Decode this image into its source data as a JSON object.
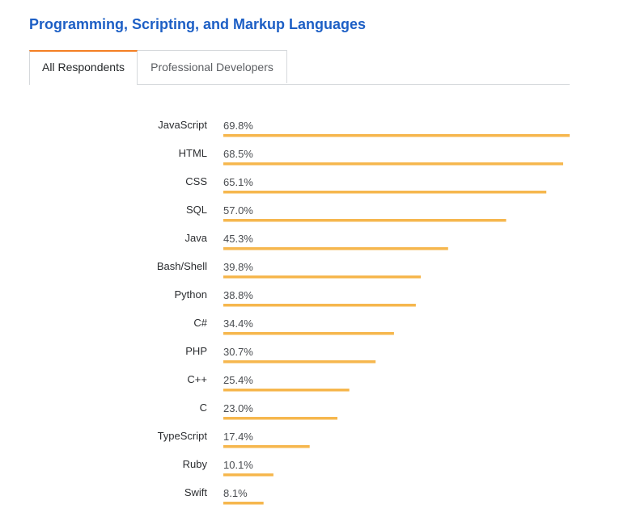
{
  "page": {
    "title": "Programming, Scripting, and Markup Languages"
  },
  "tabs": [
    {
      "label": "All Respondents",
      "active": true
    },
    {
      "label": "Professional Developers",
      "active": false
    }
  ],
  "colors": {
    "title": "#1d5fc5",
    "bar": "#f6b74e",
    "tab_active_accent": "#f48024"
  },
  "chart_data": {
    "type": "bar",
    "orientation": "horizontal",
    "value_suffix": "%",
    "categories": [
      "JavaScript",
      "HTML",
      "CSS",
      "SQL",
      "Java",
      "Bash/Shell",
      "Python",
      "C#",
      "PHP",
      "C++",
      "C",
      "TypeScript",
      "Ruby",
      "Swift"
    ],
    "values": [
      69.8,
      68.5,
      65.1,
      57.0,
      45.3,
      39.8,
      38.8,
      34.4,
      30.7,
      25.4,
      23.0,
      17.4,
      10.1,
      8.1
    ],
    "value_labels": [
      "69.8%",
      "68.5%",
      "65.1%",
      "57.0%",
      "45.3%",
      "39.8%",
      "38.8%",
      "34.4%",
      "30.7%",
      "25.4%",
      "23.0%",
      "17.4%",
      "10.1%",
      "8.1%"
    ],
    "xlim": [
      0,
      69.8
    ]
  }
}
